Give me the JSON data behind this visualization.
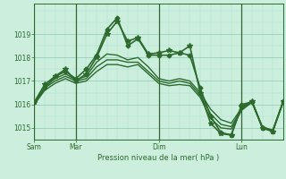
{
  "bg_color": "#cceedd",
  "line_color": "#2d6a2d",
  "grid_major_color": "#99ccbb",
  "grid_minor_color": "#aaddcc",
  "ylim": [
    1014.5,
    1020.3
  ],
  "yticks": [
    1015,
    1016,
    1017,
    1018,
    1019
  ],
  "xtick_labels": [
    "Sam",
    "Mar",
    "Dim",
    "Lun"
  ],
  "xtick_positions": [
    0,
    36,
    108,
    180
  ],
  "xlim": [
    0,
    216
  ],
  "xlabel": "Pression niveau de la mer( hPa )",
  "series": [
    {
      "x": [
        0,
        9,
        18,
        27,
        36,
        45,
        54,
        63,
        72,
        81,
        90,
        99,
        108,
        117,
        126,
        135,
        144,
        153,
        162,
        171,
        180,
        189,
        198,
        207,
        216
      ],
      "y": [
        1016.1,
        1016.7,
        1017.2,
        1017.4,
        1017.1,
        1017.5,
        1018.1,
        1019.2,
        1019.7,
        1018.5,
        1018.8,
        1018.1,
        1018.1,
        1018.1,
        1018.2,
        1018.1,
        1016.7,
        1015.5,
        1014.8,
        1014.7,
        1016.0,
        1016.1,
        1015.0,
        1014.85,
        1016.1
      ],
      "marker": "D",
      "ms": 2.5,
      "lw": 1.2,
      "every": 1
    },
    {
      "x": [
        0,
        9,
        18,
        27,
        36,
        45,
        54,
        63,
        72,
        81,
        90,
        99,
        108,
        117,
        126,
        135,
        144,
        153,
        162,
        171,
        180,
        189,
        198,
        207,
        216
      ],
      "y": [
        1016.1,
        1016.85,
        1017.2,
        1017.5,
        1017.0,
        1017.3,
        1018.0,
        1019.0,
        1019.55,
        1018.7,
        1018.85,
        1018.15,
        1018.2,
        1018.3,
        1018.2,
        1018.5,
        1016.5,
        1015.2,
        1014.75,
        1014.7,
        1015.9,
        1016.15,
        1015.0,
        1014.85,
        1016.15
      ],
      "marker": "*",
      "ms": 4,
      "lw": 1.2,
      "every": 1
    },
    {
      "x": [
        0,
        9,
        18,
        27,
        36,
        45,
        54,
        63,
        72,
        81,
        90,
        99,
        108,
        117,
        126,
        135,
        144,
        153,
        162,
        171,
        180,
        189,
        198,
        207,
        216
      ],
      "y": [
        1016.0,
        1016.75,
        1017.1,
        1017.3,
        1017.05,
        1017.2,
        1017.8,
        1018.15,
        1018.1,
        1017.9,
        1018.0,
        1017.6,
        1017.1,
        1017.0,
        1017.1,
        1017.0,
        1016.5,
        1015.8,
        1015.35,
        1015.2,
        1015.85,
        1016.1,
        1015.05,
        1014.9,
        1016.1
      ],
      "marker": null,
      "ms": 0,
      "lw": 1.0
    },
    {
      "x": [
        0,
        9,
        18,
        27,
        36,
        45,
        54,
        63,
        72,
        81,
        90,
        99,
        108,
        117,
        126,
        135,
        144,
        153,
        162,
        171,
        180,
        189,
        198,
        207,
        216
      ],
      "y": [
        1016.0,
        1016.7,
        1017.0,
        1017.2,
        1017.0,
        1017.1,
        1017.6,
        1017.9,
        1017.9,
        1017.8,
        1017.8,
        1017.4,
        1017.0,
        1016.9,
        1017.0,
        1016.9,
        1016.4,
        1015.6,
        1015.15,
        1015.05,
        1015.8,
        1016.1,
        1015.0,
        1014.9,
        1016.1
      ],
      "marker": null,
      "ms": 0,
      "lw": 1.0
    },
    {
      "x": [
        0,
        9,
        18,
        27,
        36,
        45,
        54,
        63,
        72,
        81,
        90,
        99,
        108,
        117,
        126,
        135,
        144,
        153,
        162,
        171,
        180,
        189,
        198,
        207,
        216
      ],
      "y": [
        1016.0,
        1016.6,
        1016.9,
        1017.1,
        1016.9,
        1017.0,
        1017.4,
        1017.7,
        1017.7,
        1017.6,
        1017.7,
        1017.3,
        1016.9,
        1016.8,
        1016.85,
        1016.8,
        1016.3,
        1015.4,
        1015.0,
        1014.95,
        1015.75,
        1016.1,
        1015.0,
        1014.9,
        1016.1
      ],
      "marker": null,
      "ms": 0,
      "lw": 1.0
    }
  ],
  "vline_positions": [
    0,
    36,
    108,
    180
  ],
  "vline_color": "#336633"
}
